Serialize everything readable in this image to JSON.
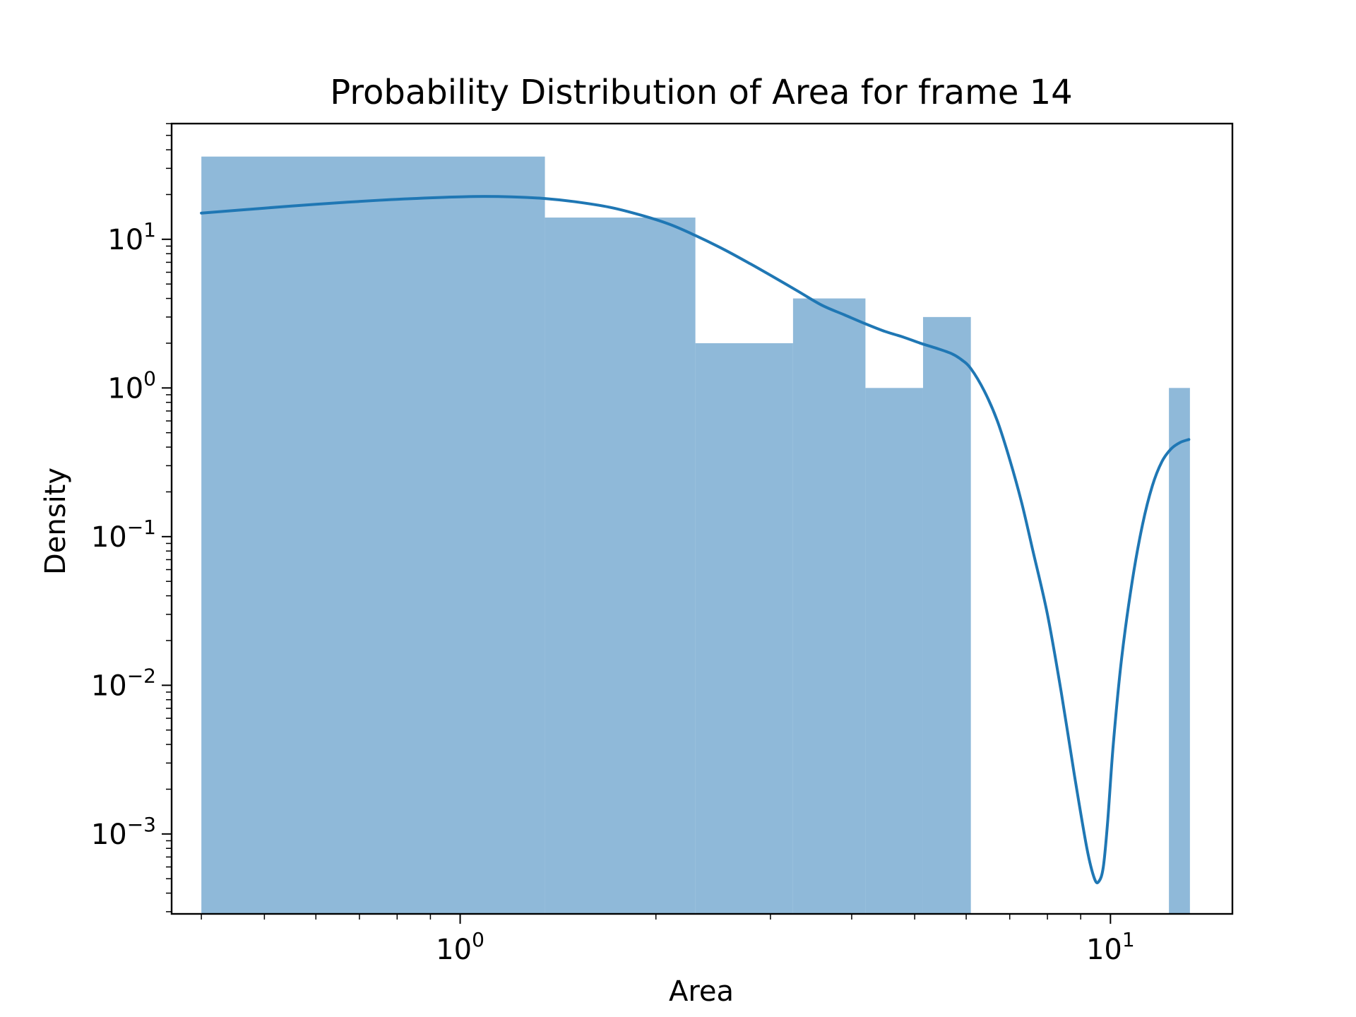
{
  "chart_data": {
    "type": "bar",
    "title": "Probability Distribution of Area for frame 14",
    "xlabel": "Area",
    "ylabel": "Density",
    "xscale": "log",
    "yscale": "log",
    "xlim": [
      0.36,
      15.4
    ],
    "ylim": [
      0.00029,
      60
    ],
    "grid": false,
    "legend": "none",
    "x_ticks": [
      {
        "value": 1,
        "base": "10",
        "exp": "0"
      },
      {
        "value": 10,
        "base": "10",
        "exp": "1"
      }
    ],
    "y_ticks": [
      {
        "value": 10,
        "base": "10",
        "exp": "1"
      },
      {
        "value": 1,
        "base": "10",
        "exp": "0"
      },
      {
        "value": 0.1,
        "base": "10",
        "exp": "−1"
      },
      {
        "value": 0.01,
        "base": "10",
        "exp": "−2"
      },
      {
        "value": 0.001,
        "base": "10",
        "exp": "−3"
      }
    ],
    "bars": [
      {
        "x0": 0.4,
        "x1": 1.35,
        "value": 36
      },
      {
        "x0": 1.35,
        "x1": 2.3,
        "value": 14
      },
      {
        "x0": 2.3,
        "x1": 3.25,
        "value": 2
      },
      {
        "x0": 3.25,
        "x1": 4.2,
        "value": 4
      },
      {
        "x0": 4.2,
        "x1": 5.15,
        "value": 1
      },
      {
        "x0": 5.15,
        "x1": 6.1,
        "value": 3
      },
      {
        "x0": 12.3,
        "x1": 13.25,
        "value": 1
      }
    ],
    "kde": {
      "name": "",
      "x": [
        0.4,
        0.5,
        0.6,
        0.75,
        0.9,
        1.05,
        1.2,
        1.35,
        1.5,
        1.7,
        1.9,
        2.1,
        2.3,
        2.55,
        2.8,
        3.05,
        3.3,
        3.6,
        3.9,
        4.2,
        4.5,
        4.8,
        5.1,
        5.4,
        5.7,
        5.9,
        6.1,
        6.4,
        6.7,
        7.0,
        7.3,
        7.6,
        8.0,
        8.4,
        8.8,
        9.2,
        9.45,
        9.6,
        9.75,
        9.9,
        10.1,
        10.4,
        10.8,
        11.2,
        11.6,
        12.0,
        12.4,
        12.8,
        13.2
      ],
      "y": [
        15.0,
        16.2,
        17.2,
        18.3,
        19.0,
        19.4,
        19.3,
        18.8,
        17.9,
        16.4,
        14.5,
        12.6,
        10.6,
        8.5,
        6.8,
        5.5,
        4.5,
        3.6,
        3.1,
        2.7,
        2.4,
        2.2,
        2.0,
        1.85,
        1.7,
        1.55,
        1.35,
        0.95,
        0.6,
        0.33,
        0.17,
        0.08,
        0.03,
        0.009,
        0.0025,
        0.0008,
        0.0005,
        0.00048,
        0.0006,
        0.0012,
        0.004,
        0.015,
        0.05,
        0.12,
        0.22,
        0.32,
        0.39,
        0.43,
        0.45
      ]
    },
    "colors": {
      "bar": "#8fb9d9",
      "line": "#1f77b4",
      "axes": "#000000"
    }
  }
}
